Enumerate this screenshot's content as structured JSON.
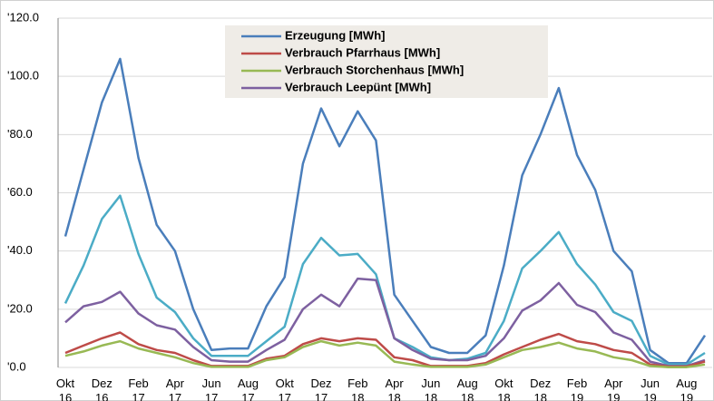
{
  "chart_data": {
    "type": "line",
    "categories": [
      "Okt 16",
      null,
      "Dez 16",
      null,
      "Feb 17",
      null,
      "Apr 17",
      null,
      "Jun 17",
      null,
      "Aug 17",
      null,
      "Okt 17",
      null,
      "Dez 17",
      null,
      "Feb 18",
      null,
      "Apr 18",
      null,
      "Jun 18",
      null,
      "Aug 18",
      null,
      "Okt 18",
      null,
      "Dez 18",
      null,
      "Feb 19",
      null,
      "Apr 19",
      null,
      "Jun 19",
      null,
      "Aug 19",
      null
    ],
    "ylim": [
      0,
      120
    ],
    "yticks": [
      {
        "value": 0,
        "label": "'0.0"
      },
      {
        "value": 20,
        "label": "'20.0"
      },
      {
        "value": 40,
        "label": "'40.0"
      },
      {
        "value": 60,
        "label": "'60.0"
      },
      {
        "value": 80,
        "label": "'80.0"
      },
      {
        "value": 100,
        "label": "'100.0"
      },
      {
        "value": 120,
        "label": "'120.0"
      }
    ],
    "grid": true,
    "series": [
      {
        "name": "Erzeugung [MWh]",
        "color": "#4a7ebb",
        "values": [
          45,
          68,
          91,
          106,
          72,
          49,
          40,
          20,
          6,
          6.5,
          6.5,
          21,
          31,
          70,
          89,
          76,
          88,
          78,
          25,
          16,
          7,
          5,
          5,
          11,
          35,
          66,
          80,
          96,
          73,
          61,
          40,
          33,
          6,
          1.5,
          1.5,
          11
        ]
      },
      {
        "name": "Verbrauch Pfarrhaus [MWh]",
        "color": "#be4b48",
        "values": [
          5,
          7.5,
          10,
          12,
          8,
          6,
          5,
          2.5,
          0.5,
          0.5,
          0.5,
          3,
          4,
          8,
          10,
          9,
          10,
          9.5,
          3.5,
          2.5,
          0.5,
          0.5,
          0.5,
          1.5,
          4.5,
          7,
          9.5,
          11.5,
          9,
          8,
          6,
          5,
          1,
          0.3,
          0.3,
          2
        ]
      },
      {
        "name": "Verbrauch Storchenhaus [MWh]",
        "color": "#98b954",
        "values": [
          4,
          5.5,
          7.5,
          9,
          6.5,
          5,
          3.5,
          1.5,
          0.2,
          0.2,
          0.2,
          2.5,
          3.5,
          7,
          9,
          7.5,
          8.5,
          7.5,
          2,
          1,
          0.2,
          0.2,
          0.2,
          1,
          3.5,
          6,
          7,
          8.5,
          6.5,
          5.5,
          3.5,
          2.5,
          0.5,
          0.1,
          0.1,
          1
        ]
      },
      {
        "name": "Verbrauch Leepünt [MWh]",
        "color": "#7d60a0",
        "values": [
          15.5,
          21,
          22.5,
          26,
          18.5,
          14.5,
          13,
          7,
          2.5,
          2,
          2,
          6,
          9.5,
          20,
          25,
          21,
          30.5,
          30,
          10,
          6,
          3,
          2.5,
          2.5,
          4,
          10,
          19.5,
          23,
          29,
          21.5,
          19,
          12,
          9.5,
          2,
          0.5,
          0.5,
          2.5
        ]
      },
      {
        "color": "#4bacc6",
        "values": [
          22,
          35,
          51,
          59,
          39,
          24,
          19,
          10,
          4,
          4,
          4,
          9,
          14,
          35.5,
          44.5,
          38.5,
          39,
          32,
          10,
          7,
          3.5,
          2.5,
          3,
          5,
          16,
          34,
          40,
          46.5,
          35.5,
          28.5,
          19,
          16,
          4,
          1,
          1,
          5
        ]
      }
    ]
  }
}
